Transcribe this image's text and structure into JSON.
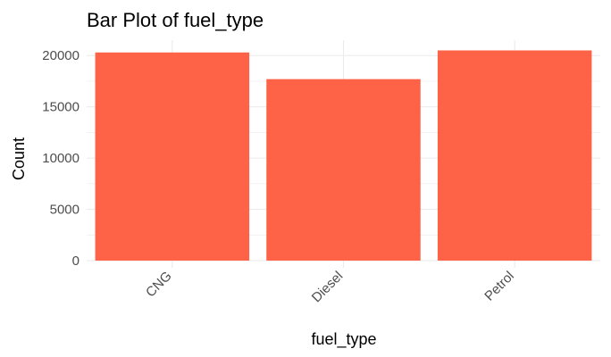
{
  "chart_data": {
    "type": "bar",
    "title": "Bar Plot of fuel_type",
    "xlabel": "fuel_type",
    "ylabel": "Count",
    "categories": [
      "CNG",
      "Diesel",
      "Petrol"
    ],
    "values": [
      20300,
      17700,
      20500
    ],
    "ylim": [
      0,
      21500
    ],
    "yticks": [
      0,
      5000,
      10000,
      15000,
      20000
    ],
    "ytick_labels": [
      "0",
      "5000",
      "10000",
      "15000",
      "20000"
    ],
    "grid": true,
    "legend": "none",
    "bar_color": "#FF6347",
    "grid_color": "#EBEBEB"
  }
}
